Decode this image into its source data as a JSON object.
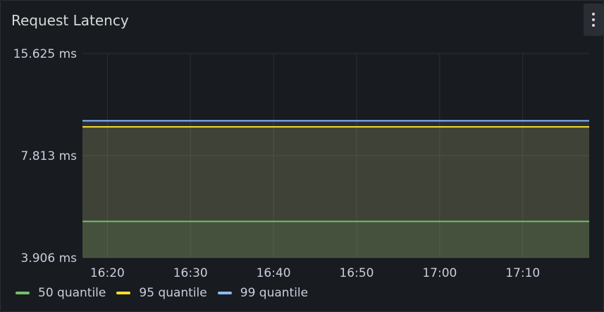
{
  "panel": {
    "title": "Request Latency",
    "menu_icon": "kebab-menu-icon"
  },
  "chart_data": {
    "type": "area",
    "title": "Request Latency",
    "y_scale": "log2",
    "ylim": [
      3.906,
      15.625
    ],
    "y_ticks": [
      "15.625 ms",
      "7.813 ms",
      "3.906 ms"
    ],
    "y_tick_values": [
      15.625,
      7.813,
      3.906
    ],
    "y_unit": "ms",
    "x_ticks": [
      "16:20",
      "16:30",
      "16:40",
      "16:50",
      "17:00",
      "17:10"
    ],
    "x": [
      "16:17",
      "17:18"
    ],
    "grid": true,
    "legend_position": "bottom-left",
    "series": [
      {
        "name": "50 quantile",
        "color": "#73bf69",
        "values": [
          5.0,
          5.0
        ]
      },
      {
        "name": "95 quantile",
        "color": "#fade2a",
        "values": [
          9.5,
          9.5
        ]
      },
      {
        "name": "99 quantile",
        "color": "#8ab8ff",
        "values": [
          9.9,
          9.9
        ]
      }
    ]
  }
}
